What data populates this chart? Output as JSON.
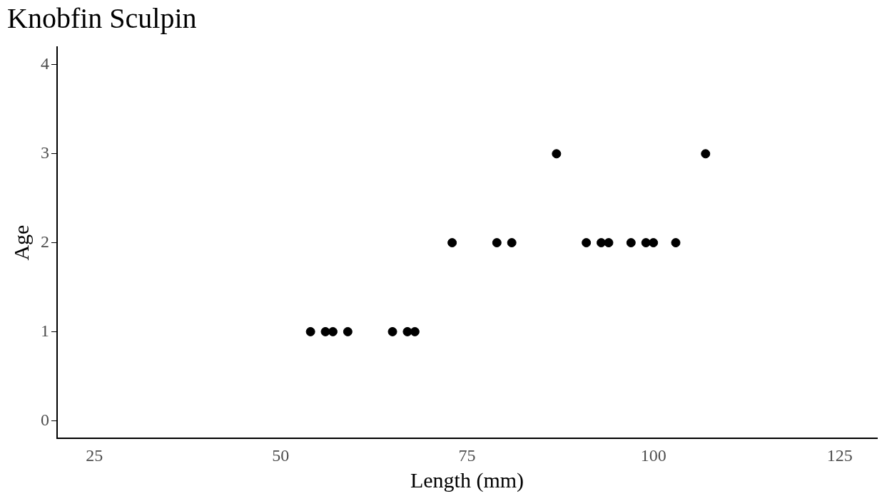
{
  "chart_data": {
    "type": "scatter",
    "title": "Knobfin Sculpin",
    "xlabel": "Length (mm)",
    "ylabel": "Age",
    "x": [
      54,
      56,
      57,
      59,
      65,
      67,
      68,
      73,
      79,
      81,
      87,
      91,
      93,
      94,
      97,
      99,
      100,
      103,
      107
    ],
    "values": [
      1,
      1,
      1,
      1,
      1,
      1,
      1,
      2,
      2,
      2,
      3,
      2,
      2,
      2,
      2,
      2,
      2,
      2,
      3
    ],
    "color": "#000000",
    "marker": "circle",
    "xlim": [
      20,
      130
    ],
    "xticks": [
      25,
      50,
      75,
      100,
      125
    ],
    "ylim": [
      -0.2,
      4.2
    ],
    "yticks": [
      0,
      1,
      2,
      3,
      4
    ],
    "grid": false,
    "legend": false
  }
}
